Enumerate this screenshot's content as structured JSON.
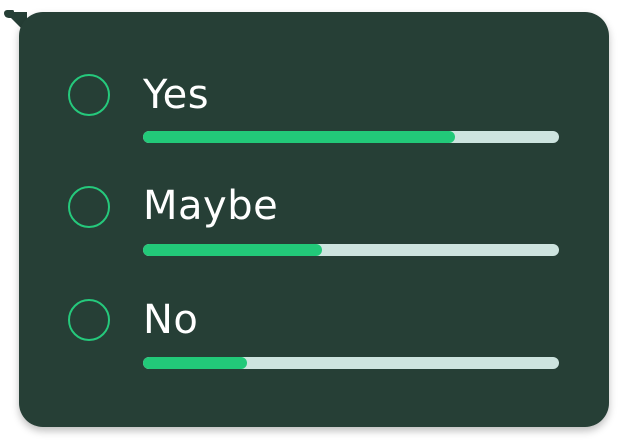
{
  "poll": {
    "colors": {
      "background": "#263f36",
      "accent": "#22c979",
      "track": "#cde4df",
      "text": "#ffffff"
    },
    "options": [
      {
        "label": "Yes",
        "fraction": 0.75,
        "selected": false
      },
      {
        "label": "Maybe",
        "fraction": 0.43,
        "selected": false
      },
      {
        "label": "No",
        "fraction": 0.25,
        "selected": false
      }
    ]
  }
}
